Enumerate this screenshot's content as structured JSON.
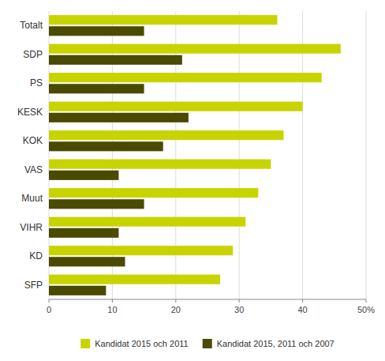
{
  "chart_data": {
    "type": "bar",
    "orientation": "horizontal",
    "categories": [
      "Totalt",
      "SDP",
      "PS",
      "KESK",
      "KOK",
      "VAS",
      "Muut",
      "VIHR",
      "KD",
      "SFP"
    ],
    "series": [
      {
        "name": "Kandidat 2015 och 2011",
        "color": "#c8d400",
        "values": [
          36,
          46,
          43,
          40,
          37,
          35,
          33,
          31,
          29,
          27
        ]
      },
      {
        "name": "Kandidat 2015, 2011 och 2007",
        "color": "#4a4a00",
        "values": [
          15,
          21,
          15,
          22,
          18,
          11,
          15,
          11,
          12,
          9
        ]
      }
    ],
    "xlim": [
      0,
      50
    ],
    "xticks": [
      0,
      10,
      20,
      30,
      40,
      {
        "value": 50,
        "label": "50%"
      }
    ],
    "grid": true,
    "legend": "bottom"
  }
}
